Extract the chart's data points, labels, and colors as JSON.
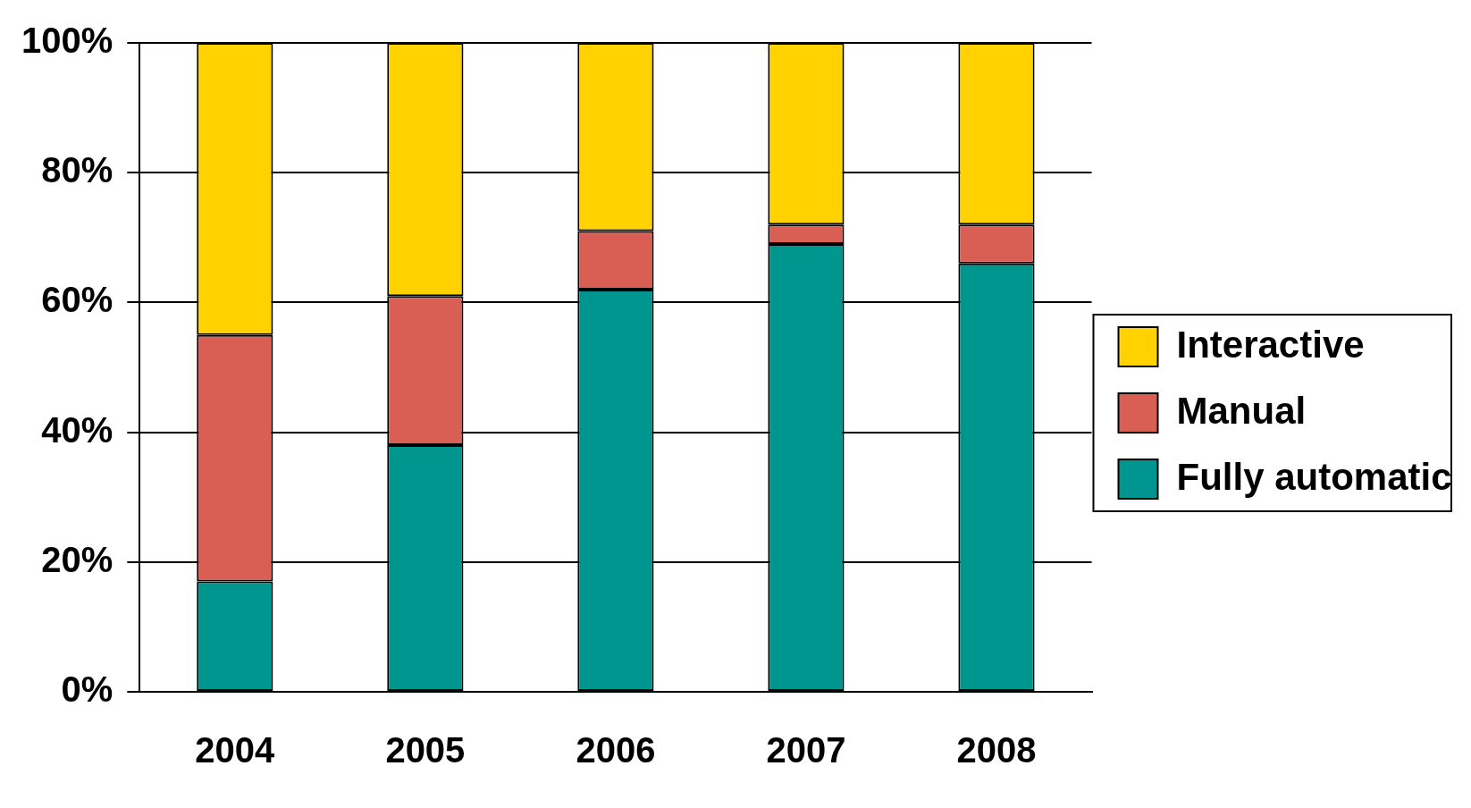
{
  "chart_data": {
    "type": "bar",
    "stacked": true,
    "categories": [
      "2004",
      "2005",
      "2006",
      "2007",
      "2008"
    ],
    "series": [
      {
        "name": "Fully automatic",
        "color": "#009690",
        "values": [
          17,
          38,
          62,
          69,
          66
        ]
      },
      {
        "name": "Manual",
        "color": "#d95f55",
        "values": [
          38,
          23,
          9,
          3,
          6
        ]
      },
      {
        "name": "Interactive",
        "color": "#ffd200",
        "values": [
          45,
          39,
          29,
          28,
          28
        ]
      }
    ],
    "ylim": [
      0,
      100
    ],
    "yticks": [
      {
        "value": 0,
        "label": "0%"
      },
      {
        "value": 20,
        "label": "20%"
      },
      {
        "value": 40,
        "label": "40%"
      },
      {
        "value": 60,
        "label": "60%"
      },
      {
        "value": 80,
        "label": "80%"
      },
      {
        "value": 100,
        "label": "100%"
      }
    ],
    "grid": "y",
    "legend": "right"
  }
}
